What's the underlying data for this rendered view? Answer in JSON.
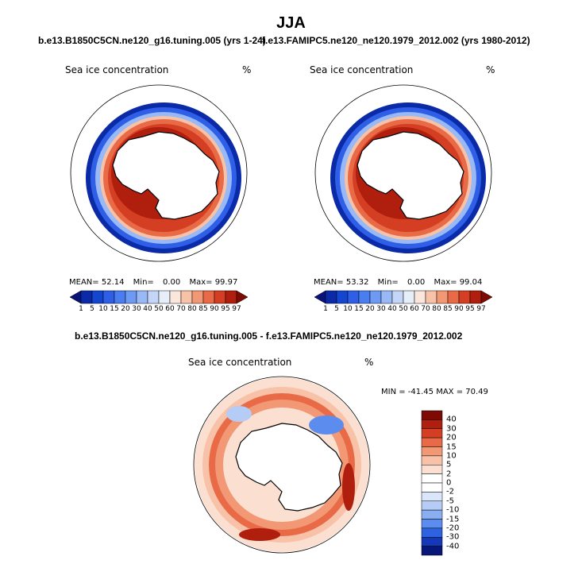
{
  "figure_title": "JJA",
  "case_a": "b.e13.B1850C5CN.ne120_g16.tuning.005 (yrs 1-24)",
  "case_b": "f.e13.FAMIPC5.ne120_ne120.1979_2012.002 (yrs 1980-2012)",
  "diff_title": "b.e13.B1850C5CN.ne120_g16.tuning.005 - f.e13.FAMIPC5.ne120_ne120.1979_2012.002",
  "panels": [
    {
      "variable": "Sea ice concentration",
      "units": "%",
      "stats": {
        "mean_label": "MEAN=",
        "mean": "52.14",
        "min_label": "Min=",
        "min": "0.00",
        "max_label": "Max=",
        "max": "99.97"
      }
    },
    {
      "variable": "Sea ice concentration",
      "units": "%",
      "stats": {
        "mean_label": "MEAN=",
        "mean": "53.32",
        "min_label": "Min=",
        "min": "0.00",
        "max_label": "Max=",
        "max": "99.04"
      }
    }
  ],
  "diff_panel": {
    "variable": "Sea ice concentration",
    "units": "%",
    "stats": "MIN = -41.45 MAX =  70.49"
  },
  "colorbar_abs": {
    "labels": [
      "1",
      "5",
      "10",
      "15",
      "20",
      "30",
      "40",
      "50",
      "60",
      "70",
      "80",
      "85",
      "90",
      "95",
      "97"
    ],
    "colors": [
      "#08147a",
      "#0a2aa8",
      "#1446d0",
      "#2e5fe6",
      "#4a7ef0",
      "#6e9af4",
      "#98b8f6",
      "#c4d6f8",
      "#e6eefa",
      "#fbe6dc",
      "#f8c2a8",
      "#f29874",
      "#e86a46",
      "#d43e22",
      "#b01e0e",
      "#7e0a04"
    ]
  },
  "colorbar_diff": {
    "labels": [
      "40",
      "30",
      "20",
      "15",
      "10",
      "5",
      "2",
      "0",
      "-2",
      "-5",
      "-10",
      "-15",
      "-20",
      "-30",
      "-40"
    ],
    "colors": [
      "#7e0a04",
      "#b01e0e",
      "#d43e22",
      "#e86a46",
      "#f29874",
      "#f8c2a8",
      "#fbe0d2",
      "#ffffff",
      "#ffffff",
      "#dae6fa",
      "#b4ccf6",
      "#8aaef2",
      "#5c8cee",
      "#2e62e0",
      "#1438b8",
      "#08167a"
    ]
  }
}
